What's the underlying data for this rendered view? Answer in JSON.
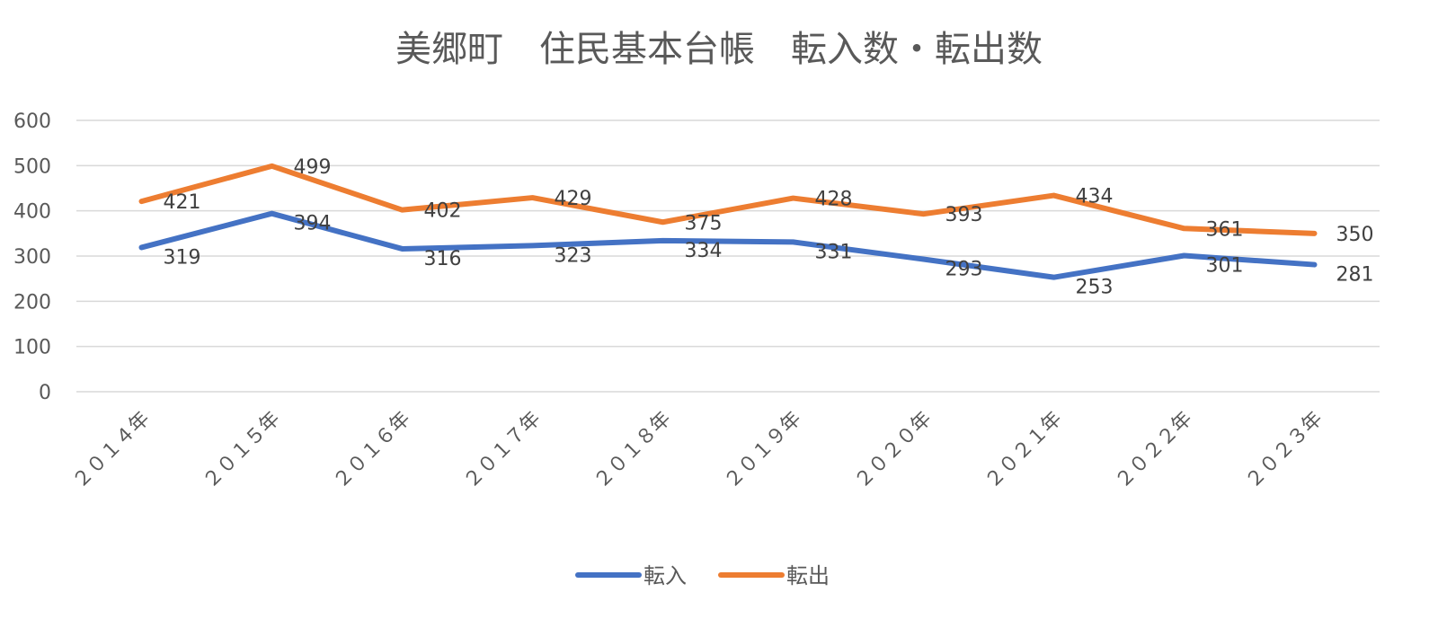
{
  "chart_data": {
    "type": "line",
    "title": "美郷町　住民基本台帳　転入数・転出数",
    "categories": [
      "２０１４年",
      "２０１５年",
      "２０１６年",
      "２０１７年",
      "２０１８年",
      "２０１９年",
      "２０２０年",
      "２０２１年",
      "２０２２年",
      "２０２３年"
    ],
    "series": [
      {
        "name": "転入",
        "color": "#4472C4",
        "values": [
          319,
          394,
          316,
          323,
          334,
          331,
          293,
          253,
          301,
          281
        ]
      },
      {
        "name": "転出",
        "color": "#ED7D31",
        "values": [
          421,
          499,
          402,
          429,
          375,
          428,
          393,
          434,
          361,
          350
        ]
      }
    ],
    "ylim": [
      0,
      600
    ],
    "yticks": [
      0,
      100,
      200,
      300,
      400,
      500,
      600
    ],
    "grid": true,
    "legend_position": "bottom",
    "data_labels": true
  }
}
